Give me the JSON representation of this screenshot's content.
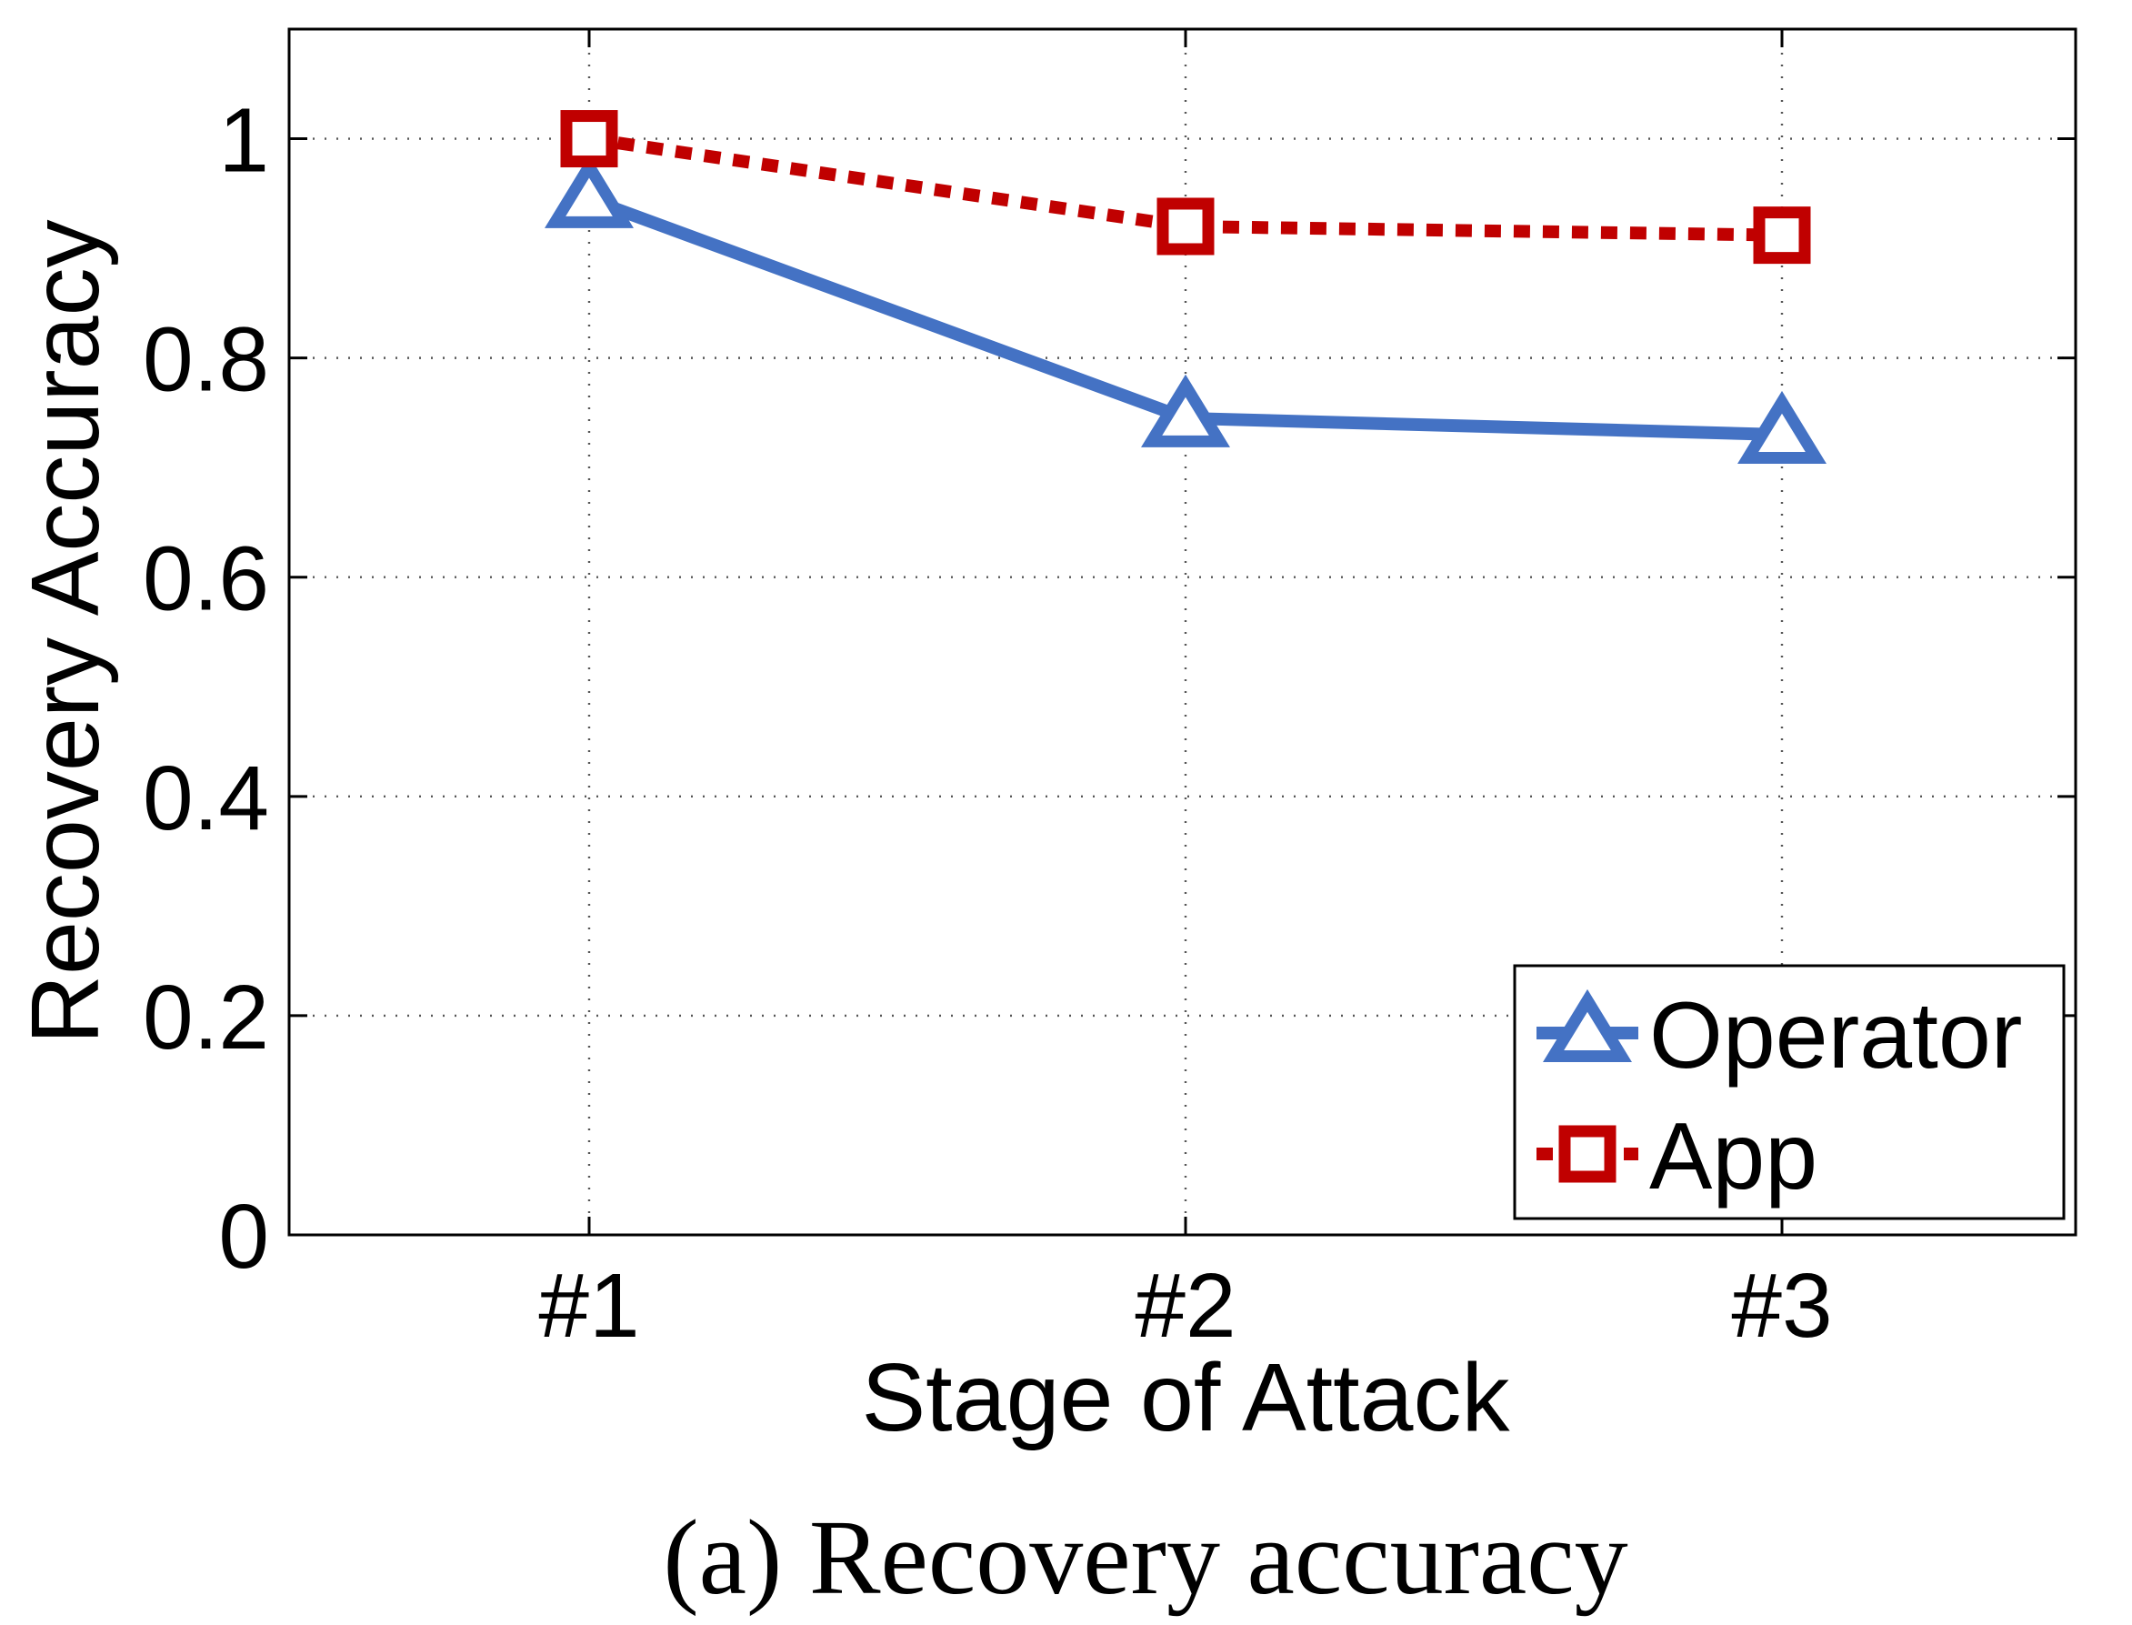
{
  "chart_data": {
    "type": "line",
    "categories": [
      "#1",
      "#2",
      "#3"
    ],
    "xlabel": "Stage of Attack",
    "ylabel": "Recovery Accuracy",
    "ylim": [
      0,
      1.1
    ],
    "yticks": [
      0,
      0.2,
      0.4,
      0.6,
      0.8,
      1
    ],
    "ytick_labels": [
      "0",
      "0.2",
      "0.4",
      "0.6",
      "0.8",
      "1"
    ],
    "grid": true,
    "legend_position": "bottom-right",
    "series": [
      {
        "name": "Operator",
        "values": [
          0.945,
          0.745,
          0.73
        ],
        "color": "#4472c4",
        "line_style": "solid",
        "marker": "triangle"
      },
      {
        "name": "App",
        "values": [
          1.0,
          0.92,
          0.912
        ],
        "color": "#c00000",
        "line_style": "dotted",
        "marker": "square"
      }
    ]
  },
  "caption": "(a) Recovery accuracy"
}
